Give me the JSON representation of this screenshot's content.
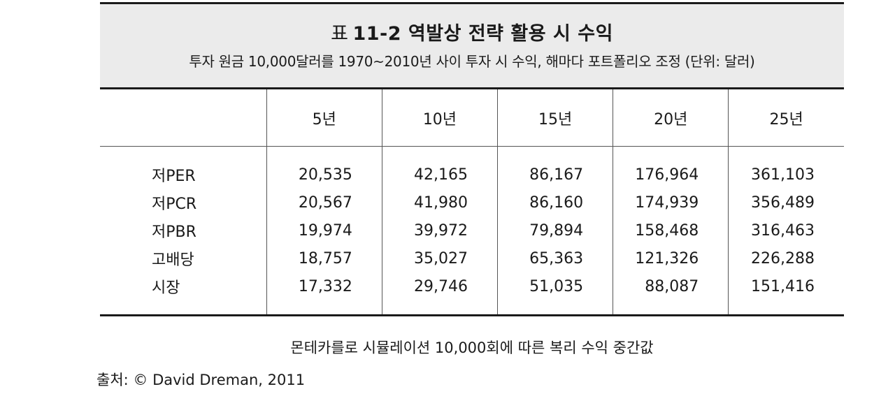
{
  "table": {
    "prefix": "표",
    "title": "11-2  역발상 전략 활용 시 수익",
    "subtitle": "투자 원금 10,000달러를 1970~2010년 사이 투자 시 수익, 해마다 포트폴리오 조정 (단위: 달러)",
    "columns": [
      "5년",
      "10년",
      "15년",
      "20년",
      "25년"
    ],
    "rows": [
      {
        "label": "저PER",
        "values": [
          "20,535",
          "42,165",
          "86,167",
          "176,964",
          "361,103"
        ]
      },
      {
        "label": "저PCR",
        "values": [
          "20,567",
          "41,980",
          "86,160",
          "174,939",
          "356,489"
        ]
      },
      {
        "label": "저PBR",
        "values": [
          "19,974",
          "39,972",
          "79,894",
          "158,468",
          "316,463"
        ]
      },
      {
        "label": "고배당",
        "values": [
          "18,757",
          "35,027",
          "65,363",
          "121,326",
          "226,288"
        ]
      },
      {
        "label": "시장",
        "values": [
          "17,332",
          "29,746",
          "51,035",
          "88,087",
          "151,416"
        ]
      }
    ]
  },
  "footnote": "몬테카를로 시뮬레이션 10,000회에 따른 복리 수익 중간값",
  "source": "출처: © David Dreman, 2011"
}
